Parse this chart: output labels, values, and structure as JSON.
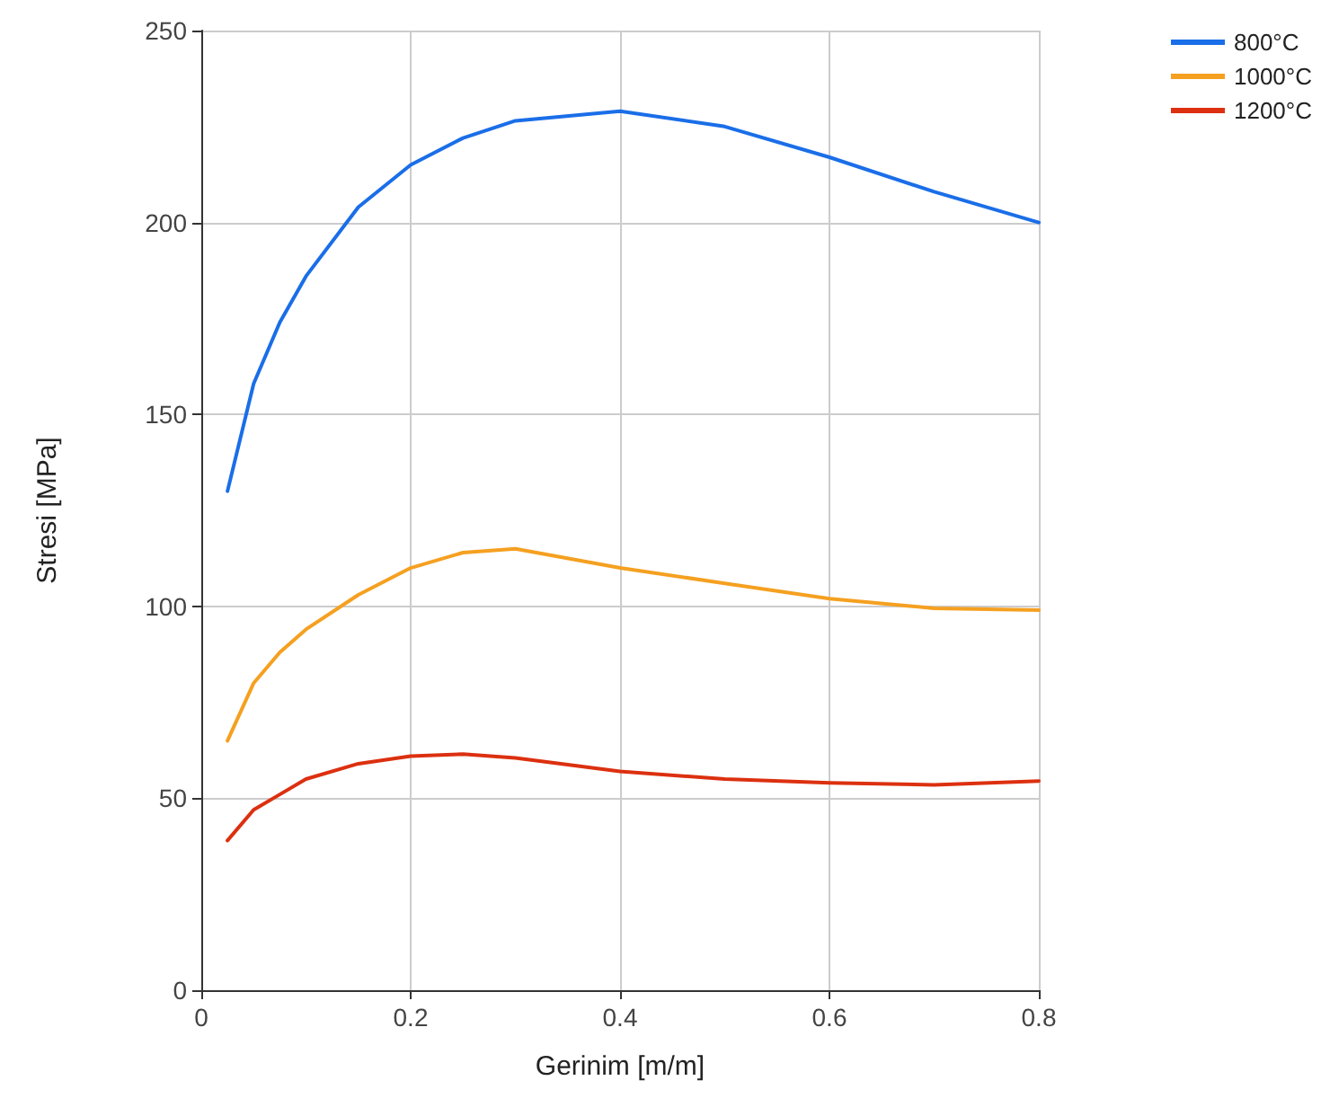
{
  "chart_data": {
    "type": "line",
    "xlabel": "Gerinim [m/m]",
    "ylabel": "Stresi [MPa]",
    "x": [
      0.025,
      0.05,
      0.075,
      0.1,
      0.15,
      0.2,
      0.25,
      0.3,
      0.4,
      0.5,
      0.6,
      0.7,
      0.8
    ],
    "series": [
      {
        "name": "800°C",
        "color": "#1a6ee8",
        "values": [
          130,
          158,
          174,
          186,
          204,
          215,
          222,
          226.5,
          229,
          225,
          217,
          208,
          200
        ]
      },
      {
        "name": "1000°C",
        "color": "#f5a020",
        "values": [
          65,
          80,
          88,
          94,
          103,
          110,
          114,
          115,
          110,
          106,
          102,
          99.5,
          99
        ]
      },
      {
        "name": "1200°C",
        "color": "#dc3010",
        "values": [
          39,
          47,
          51,
          55,
          59,
          61,
          61.5,
          60.5,
          57,
          55,
          54,
          53.5,
          54.5
        ]
      }
    ],
    "xlim": [
      0,
      0.8
    ],
    "xticks": [
      0,
      0.2,
      0.4,
      0.6,
      0.8
    ],
    "ylim": [
      0,
      250
    ],
    "yticks": [
      0,
      50,
      100,
      150,
      200,
      250
    ],
    "grid": true,
    "legend": "top right",
    "marker": "none",
    "line_style": "solid"
  }
}
